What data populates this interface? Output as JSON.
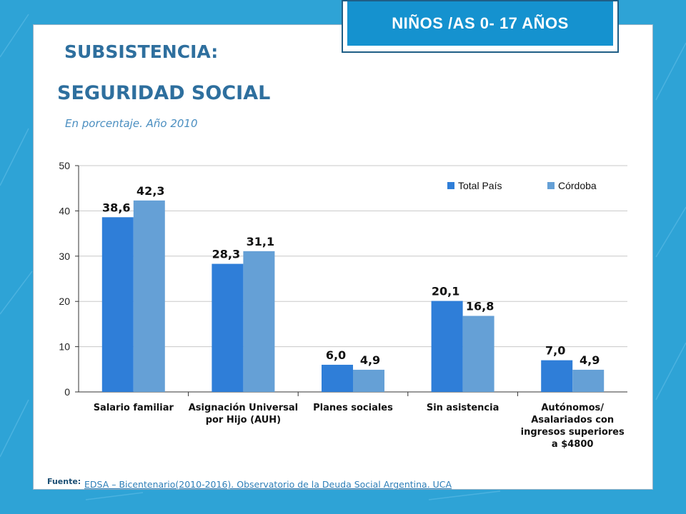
{
  "header": {
    "badge": "NIÑOS /AS 0- 17 AÑOS",
    "title_line1": "SUBSISTENCIA:",
    "title_line2": "SEGURIDAD SOCIAL",
    "subtitle": "En porcentaje. Año 2010"
  },
  "footer": {
    "label": "Fuente:",
    "source": "EDSA – Bicentenario(2010-2016). Observatorio de la Deuda Social Argentina. UCA"
  },
  "colors": {
    "total_pais": "#2f7ed8",
    "cordoba": "#65a0d6",
    "gridline": "#c8c8c8",
    "axis": "#333333"
  },
  "chart_data": {
    "type": "bar",
    "title": "",
    "xlabel": "",
    "ylabel": "",
    "ylim": [
      0,
      50
    ],
    "yticks": [
      "0",
      "10",
      "20",
      "30",
      "40",
      "50"
    ],
    "grid": true,
    "legend_position": "top-right",
    "categories": [
      [
        "Salario familiar"
      ],
      [
        "Asignación Universal",
        "por Hijo (AUH)"
      ],
      [
        "Planes sociales"
      ],
      [
        "Sin asistencia"
      ],
      [
        "Autónomos/",
        "Asalariados  con",
        "ingresos superiores",
        "a $4800"
      ]
    ],
    "series": [
      {
        "name": "Total País",
        "values": [
          38.6,
          28.3,
          6.0,
          20.1,
          7.0
        ],
        "labels": [
          "38,6",
          "28,3",
          "6,0",
          "20,1",
          "7,0"
        ]
      },
      {
        "name": "Córdoba",
        "values": [
          42.3,
          31.1,
          4.9,
          16.8,
          4.9
        ],
        "labels": [
          "42,3",
          "31,1",
          "4,9",
          "16,8",
          "4,9"
        ]
      }
    ]
  }
}
